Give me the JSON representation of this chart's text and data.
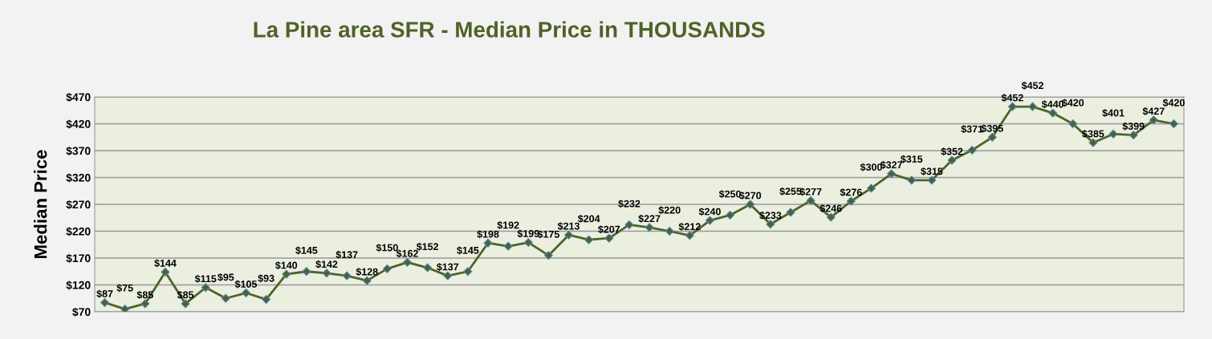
{
  "chart_data": {
    "type": "line",
    "title": "La Pine area SFR - Median Price in THOUSANDS",
    "ylabel": "Median Price",
    "categories": [
      null,
      null,
      null,
      null,
      null,
      null,
      null,
      null,
      null,
      null,
      null,
      null,
      null,
      null,
      null,
      null,
      null,
      null,
      null,
      null,
      null,
      null,
      null,
      null,
      null,
      null,
      null,
      null,
      null,
      null,
      null,
      null,
      null,
      null,
      null,
      null,
      null,
      null,
      null,
      null,
      null,
      null,
      null,
      null,
      null,
      null,
      null,
      null,
      null,
      null,
      null,
      null,
      null,
      null
    ],
    "series": [
      {
        "color": "#4f6228",
        "values": [
          87,
          75,
          85,
          144,
          85,
          115,
          95,
          105,
          93,
          140,
          145,
          142,
          137,
          128,
          150,
          162,
          152,
          137,
          145,
          198,
          192,
          199,
          175,
          213,
          204,
          207,
          232,
          227,
          220,
          212,
          240,
          250,
          270,
          233,
          255,
          277,
          246,
          276,
          300,
          327,
          315,
          315,
          352,
          371,
          395,
          452,
          452,
          440,
          420,
          385,
          401,
          399,
          427,
          420
        ],
        "value_labels": [
          "$87",
          "$75",
          "$85",
          "$144",
          "$85",
          "$115",
          "$95",
          "$105",
          "$93",
          "$140",
          "$145",
          "$142",
          "$137",
          "$128",
          "$150",
          "$162",
          "$152",
          "$137",
          "$145",
          "$198",
          "$192",
          "$199",
          "$175",
          "$213",
          "$204",
          "$207",
          "$232",
          "$227",
          "$220",
          "$212",
          "$240",
          "$250",
          "$270",
          "$233",
          "$255",
          "$277",
          "$246",
          "$276",
          "$300",
          "$327",
          "$315",
          "$315",
          "$352",
          "$371",
          "$395",
          "$452",
          "$452",
          "$440",
          "$420",
          "$385",
          "$401",
          "$399",
          "$427",
          "$420"
        ]
      }
    ],
    "ylim": [
      70,
      470
    ],
    "yticks": [
      {
        "value": 70,
        "label": "$70"
      },
      {
        "value": 120,
        "label": "$120"
      },
      {
        "value": 170,
        "label": "$170"
      },
      {
        "value": 220,
        "label": "$220"
      },
      {
        "value": 270,
        "label": "$270"
      },
      {
        "value": 320,
        "label": "$320"
      },
      {
        "value": 370,
        "label": "$370"
      },
      {
        "value": 420,
        "label": "$420"
      },
      {
        "value": 470,
        "label": "$470"
      }
    ],
    "grid": "y",
    "marker": "diamond",
    "line_style": "solid",
    "tick_labels": "y"
  }
}
